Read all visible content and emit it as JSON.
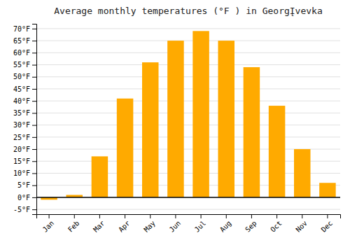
{
  "chart_data": {
    "type": "bar",
    "title": "Average monthly temperatures (°F ) in GeorgĮvevka",
    "categories": [
      "Jan",
      "Feb",
      "Mar",
      "Apr",
      "May",
      "Jun",
      "Jul",
      "Aug",
      "Sep",
      "Oct",
      "Nov",
      "Dec"
    ],
    "values": [
      -1,
      1,
      17,
      41,
      56,
      65,
      69,
      65,
      54,
      38,
      20,
      6
    ],
    "color": "#FFAA00",
    "ylim": [
      -7,
      72
    ],
    "yticks": [
      {
        "value": 0,
        "label": "0°F"
      },
      {
        "value": 5,
        "label": "5°F"
      },
      {
        "value": 10,
        "label": "10°F"
      },
      {
        "value": 15,
        "label": "15°F"
      },
      {
        "value": 20,
        "label": "20°F"
      },
      {
        "value": 25,
        "label": "25°F"
      },
      {
        "value": 30,
        "label": "30°F"
      },
      {
        "value": 35,
        "label": "35°F"
      },
      {
        "value": 40,
        "label": "40°F"
      },
      {
        "value": 45,
        "label": "45°F"
      },
      {
        "value": 50,
        "label": "50°F"
      },
      {
        "value": 55,
        "label": "55°F"
      },
      {
        "value": 60,
        "label": "60°F"
      },
      {
        "value": 65,
        "label": "65°F"
      },
      {
        "value": 70,
        "label": "70°F"
      },
      {
        "value": -5,
        "label": "-5°F"
      }
    ],
    "grid": true
  }
}
